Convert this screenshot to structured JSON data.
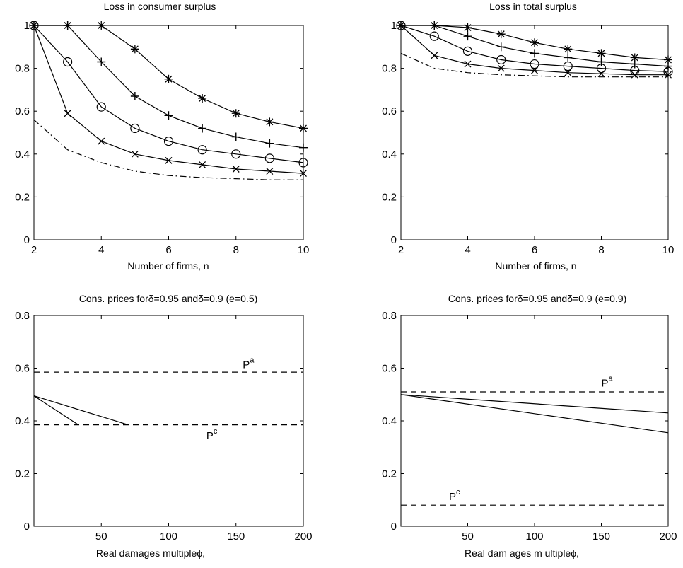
{
  "chart_data": [
    {
      "type": "line",
      "title": "Loss in consumer surplus",
      "xlabel": "Number of firms, n",
      "ylabel": "",
      "xlim": [
        2,
        10
      ],
      "ylim": [
        0,
        1
      ],
      "xticks": [
        "2",
        "4",
        "6",
        "8",
        "10"
      ],
      "yticks": [
        "0",
        "0.2",
        "0.4",
        "0.6",
        "0.8",
        "1"
      ],
      "x": [
        2,
        3,
        4,
        5,
        6,
        7,
        8,
        9,
        10
      ],
      "series": [
        {
          "marker": "star",
          "dash": "solid",
          "values": [
            1.0,
            1.0,
            1.0,
            0.89,
            0.75,
            0.66,
            0.59,
            0.55,
            0.52
          ]
        },
        {
          "marker": "plus",
          "dash": "solid",
          "values": [
            1.0,
            1.0,
            0.83,
            0.67,
            0.58,
            0.52,
            0.48,
            0.45,
            0.43
          ]
        },
        {
          "marker": "circle",
          "dash": "solid",
          "values": [
            1.0,
            0.83,
            0.62,
            0.52,
            0.46,
            0.42,
            0.4,
            0.38,
            0.36
          ]
        },
        {
          "marker": "x",
          "dash": "solid",
          "values": [
            1.0,
            0.59,
            0.46,
            0.4,
            0.37,
            0.35,
            0.33,
            0.32,
            0.31
          ]
        },
        {
          "marker": "none",
          "dash": "dashdot",
          "values": [
            0.56,
            0.42,
            0.36,
            0.32,
            0.3,
            0.29,
            0.285,
            0.28,
            0.28
          ]
        }
      ]
    },
    {
      "type": "line",
      "title": "Loss in total surplus",
      "xlabel": "Number of firms, n",
      "ylabel": "",
      "xlim": [
        2,
        10
      ],
      "ylim": [
        0,
        1
      ],
      "xticks": [
        "2",
        "4",
        "6",
        "8",
        "10"
      ],
      "yticks": [
        "0",
        "0.2",
        "0.4",
        "0.6",
        "0.8",
        "1"
      ],
      "x": [
        2,
        3,
        4,
        5,
        6,
        7,
        8,
        9,
        10
      ],
      "series": [
        {
          "marker": "star",
          "dash": "solid",
          "values": [
            1.0,
            1.0,
            0.99,
            0.96,
            0.92,
            0.89,
            0.87,
            0.85,
            0.84
          ]
        },
        {
          "marker": "plus",
          "dash": "solid",
          "values": [
            1.0,
            1.0,
            0.95,
            0.9,
            0.87,
            0.85,
            0.83,
            0.82,
            0.81
          ]
        },
        {
          "marker": "circle",
          "dash": "solid",
          "values": [
            1.0,
            0.95,
            0.88,
            0.84,
            0.82,
            0.81,
            0.8,
            0.79,
            0.785
          ]
        },
        {
          "marker": "x",
          "dash": "solid",
          "values": [
            1.0,
            0.86,
            0.82,
            0.8,
            0.79,
            0.78,
            0.775,
            0.77,
            0.77
          ]
        },
        {
          "marker": "none",
          "dash": "dashdot",
          "values": [
            0.87,
            0.8,
            0.78,
            0.77,
            0.765,
            0.76,
            0.76,
            0.76,
            0.76
          ]
        }
      ]
    },
    {
      "type": "line",
      "title": "Cons. prices forδ=0.95 andδ=0.9 (e=0.5)",
      "xlabel": "Real damages multipleϕ,",
      "ylabel": "",
      "xlim": [
        0,
        200
      ],
      "ylim": [
        0,
        0.8
      ],
      "xticks": [
        "50",
        "100",
        "150",
        "200"
      ],
      "yticks": [
        "0",
        "0.2",
        "0.4",
        "0.6",
        "0.8"
      ],
      "series": [
        {
          "dash": "dashed",
          "points": [
            [
              0,
              0.585
            ],
            [
              200,
              0.585
            ]
          ]
        },
        {
          "dash": "dashed",
          "points": [
            [
              0,
              0.385
            ],
            [
              200,
              0.385
            ]
          ]
        },
        {
          "dash": "solid",
          "points": [
            [
              0,
              0.495
            ],
            [
              70,
              0.385
            ]
          ]
        },
        {
          "dash": "solid",
          "points": [
            [
              0,
              0.495
            ],
            [
              33,
              0.385
            ]
          ]
        }
      ],
      "annotations": [
        {
          "base": "P",
          "sup": "a",
          "x": 155,
          "y": 0.6
        },
        {
          "base": "P",
          "sup": "c",
          "x": 128,
          "y": 0.33
        }
      ]
    },
    {
      "type": "line",
      "title": "Cons. prices forδ=0.95 andδ=0.9 (e=0.9)",
      "xlabel": "Real dam ages m ultipleϕ,",
      "ylabel": "",
      "xlim": [
        0,
        200
      ],
      "ylim": [
        0,
        0.8
      ],
      "xticks": [
        "50",
        "100",
        "150",
        "200"
      ],
      "yticks": [
        "0",
        "0.2",
        "0.4",
        "0.6",
        "0.8"
      ],
      "series": [
        {
          "dash": "dashed",
          "points": [
            [
              0,
              0.51
            ],
            [
              200,
              0.51
            ]
          ]
        },
        {
          "dash": "dashed",
          "points": [
            [
              0,
              0.08
            ],
            [
              200,
              0.08
            ]
          ]
        },
        {
          "dash": "solid",
          "points": [
            [
              0,
              0.5
            ],
            [
              200,
              0.43
            ]
          ]
        },
        {
          "dash": "solid",
          "points": [
            [
              0,
              0.5
            ],
            [
              200,
              0.355
            ]
          ]
        }
      ],
      "annotations": [
        {
          "base": "P",
          "sup": "a",
          "x": 150,
          "y": 0.53
        },
        {
          "base": "P",
          "sup": "c",
          "x": 36,
          "y": 0.1
        }
      ]
    }
  ]
}
